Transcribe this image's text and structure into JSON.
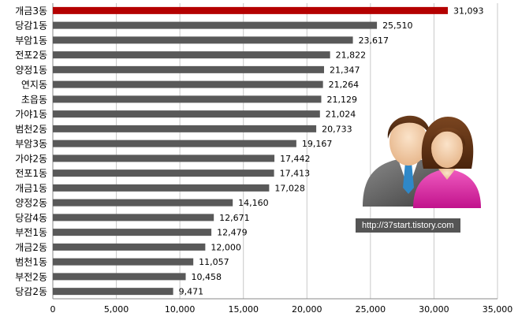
{
  "chart_data": {
    "type": "bar",
    "orientation": "horizontal",
    "categories": [
      "개금3동",
      "당감1동",
      "부암1동",
      "전포2동",
      "양정1동",
      "연지동",
      "초읍동",
      "가야1동",
      "범천2동",
      "부암3동",
      "가야2동",
      "전포1동",
      "개금1동",
      "양정2동",
      "당감4동",
      "부전1동",
      "개금2동",
      "범천1동",
      "부전2동",
      "당감2동"
    ],
    "values": [
      31093,
      25510,
      23617,
      21822,
      21347,
      21264,
      21129,
      21024,
      20733,
      19167,
      17442,
      17413,
      17028,
      14160,
      12671,
      12479,
      12000,
      11057,
      10458,
      9471
    ],
    "value_labels": [
      "31,093",
      "25,510",
      "23,617",
      "21,822",
      "21,347",
      "21,264",
      "21,129",
      "21,024",
      "20,733",
      "19,167",
      "17,442",
      "17,413",
      "17,028",
      "14,160",
      "12,671",
      "12,479",
      "12,000",
      "11,057",
      "10,458",
      "9,471"
    ],
    "ticks": [
      "0",
      "5,000",
      "10,000",
      "15,000",
      "20,000",
      "25,000",
      "30,000",
      "35,000"
    ],
    "tick_values": [
      0,
      5000,
      10000,
      15000,
      20000,
      25000,
      30000,
      35000
    ],
    "xlim": [
      0,
      35000
    ],
    "grid": true,
    "colors": {
      "highlight": "#b40000",
      "bar": "#595959",
      "grid": "#c8c8c8"
    }
  },
  "overlay": {
    "people_icon": "two-people-icon",
    "url_badge": "http://37start.tistory.com"
  }
}
